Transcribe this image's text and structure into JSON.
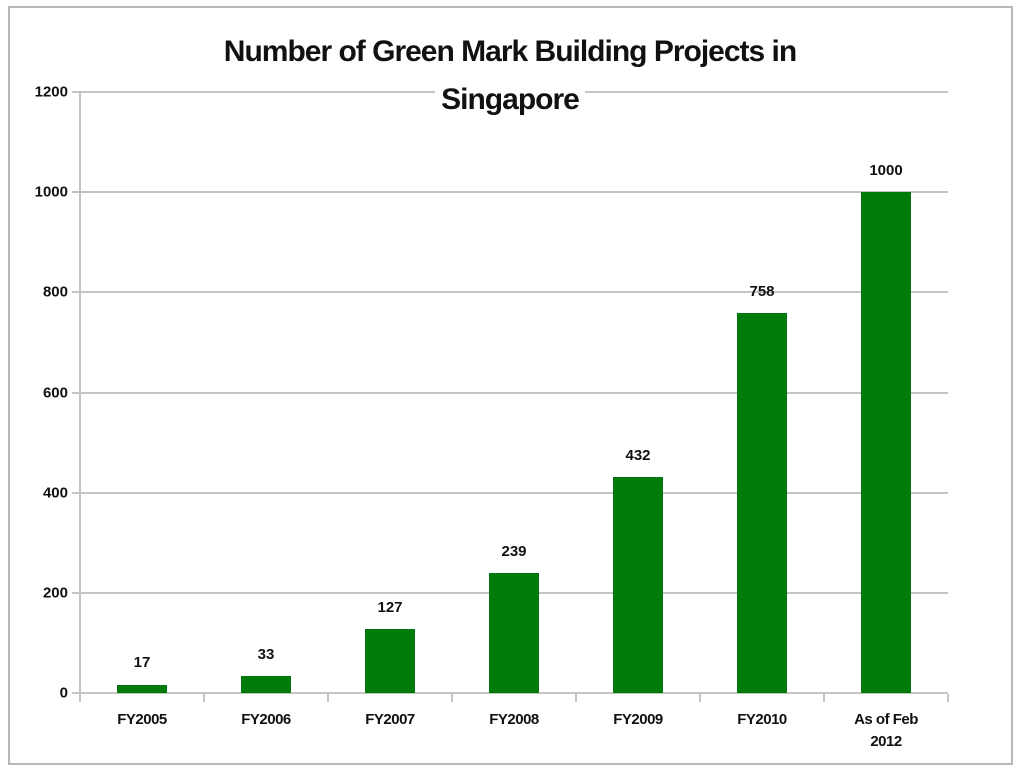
{
  "chart_data": {
    "type": "bar",
    "title": "Number of Green Mark Building Projects in Singapore",
    "title_lines": [
      "Number of Green Mark Building Projects in",
      "Singapore"
    ],
    "categories": [
      "FY2005",
      "FY2006",
      "FY2007",
      "FY2008",
      "FY2009",
      "FY2010",
      "As of Feb 2012"
    ],
    "category_lines": [
      [
        "FY2005"
      ],
      [
        "FY2006"
      ],
      [
        "FY2007"
      ],
      [
        "FY2008"
      ],
      [
        "FY2009"
      ],
      [
        "FY2010"
      ],
      [
        "As of Feb",
        "2012"
      ]
    ],
    "values": [
      17,
      33,
      127,
      239,
      432,
      758,
      1000
    ],
    "data_labels": [
      "17",
      "33",
      "127",
      "239",
      "432",
      "758",
      "1000"
    ],
    "xlabel": "",
    "ylabel": "",
    "ylim": [
      0,
      1200
    ],
    "yticks": [
      "0",
      "200",
      "400",
      "600",
      "800",
      "1000",
      "1200"
    ],
    "grid": true,
    "legend": null,
    "bar_color": "#007a0a"
  }
}
